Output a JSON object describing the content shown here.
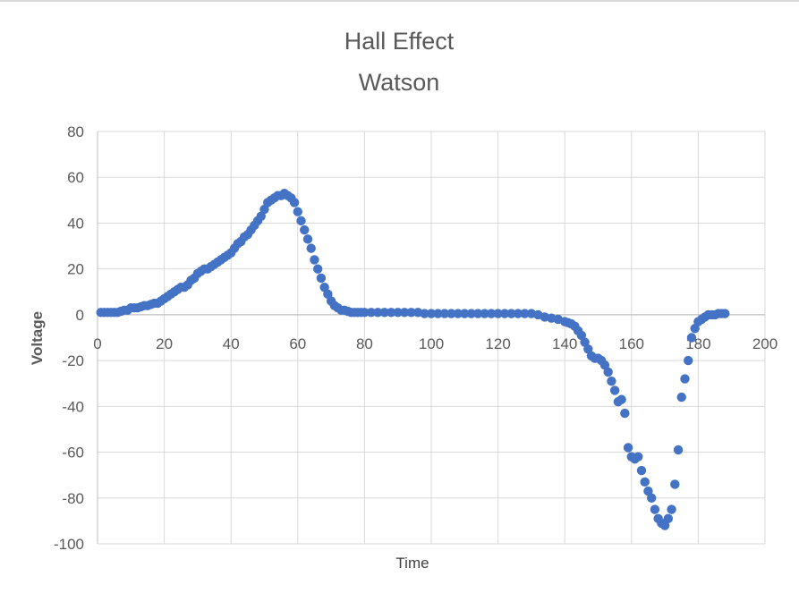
{
  "chart_data": {
    "type": "scatter",
    "title": "Hall Effect",
    "subtitle": "Watson",
    "xlabel": "Time",
    "ylabel": "Voltage",
    "xlim": [
      0,
      200
    ],
    "ylim": [
      -100,
      80
    ],
    "x_ticks": [
      0,
      20,
      40,
      60,
      80,
      100,
      120,
      140,
      160,
      180,
      200
    ],
    "y_ticks": [
      80,
      60,
      40,
      20,
      0,
      -20,
      -40,
      -60,
      -80,
      -100
    ],
    "x_tick_labels": [
      "0",
      "20",
      "40",
      "60",
      "80",
      "100",
      "120",
      "140",
      "160",
      "180",
      "200"
    ],
    "y_tick_labels": [
      "80",
      "60",
      "40",
      "20",
      "0",
      "-20",
      "-40",
      "-60",
      "-80",
      "-100"
    ],
    "grid": true,
    "legend": false,
    "marker_color": "#4472c4",
    "series": [
      {
        "points": [
          [
            1,
            1
          ],
          [
            2,
            1
          ],
          [
            3,
            1
          ],
          [
            4,
            1
          ],
          [
            5,
            1
          ],
          [
            6,
            1
          ],
          [
            7,
            1.5
          ],
          [
            8,
            2
          ],
          [
            9,
            2
          ],
          [
            10,
            3
          ],
          [
            11,
            3
          ],
          [
            12,
            3
          ],
          [
            13,
            3.5
          ],
          [
            14,
            4
          ],
          [
            15,
            4
          ],
          [
            16,
            4.5
          ],
          [
            17,
            5
          ],
          [
            18,
            5
          ],
          [
            19,
            6
          ],
          [
            20,
            7
          ],
          [
            21,
            8
          ],
          [
            22,
            9
          ],
          [
            23,
            10
          ],
          [
            24,
            11
          ],
          [
            25,
            12
          ],
          [
            26,
            12
          ],
          [
            27,
            13
          ],
          [
            28,
            15
          ],
          [
            29,
            16
          ],
          [
            30,
            18
          ],
          [
            31,
            19
          ],
          [
            32,
            20
          ],
          [
            33,
            20
          ],
          [
            34,
            21
          ],
          [
            35,
            22
          ],
          [
            36,
            23
          ],
          [
            37,
            24
          ],
          [
            38,
            25
          ],
          [
            39,
            26
          ],
          [
            40,
            27
          ],
          [
            41,
            29
          ],
          [
            42,
            31
          ],
          [
            43,
            32
          ],
          [
            44,
            34
          ],
          [
            45,
            35
          ],
          [
            46,
            37
          ],
          [
            47,
            39
          ],
          [
            48,
            41
          ],
          [
            49,
            43
          ],
          [
            50,
            46
          ],
          [
            51,
            49
          ],
          [
            52,
            50
          ],
          [
            53,
            51
          ],
          [
            54,
            52
          ],
          [
            55,
            52
          ],
          [
            56,
            53
          ],
          [
            57,
            52
          ],
          [
            58,
            51
          ],
          [
            59,
            49
          ],
          [
            60,
            45
          ],
          [
            61,
            41
          ],
          [
            62,
            37
          ],
          [
            63,
            33
          ],
          [
            64,
            29
          ],
          [
            65,
            24
          ],
          [
            66,
            20
          ],
          [
            67,
            16
          ],
          [
            68,
            12
          ],
          [
            69,
            9
          ],
          [
            70,
            6
          ],
          [
            71,
            4
          ],
          [
            72,
            3
          ],
          [
            73,
            2
          ],
          [
            74,
            2
          ],
          [
            75,
            1.5
          ],
          [
            76,
            1
          ],
          [
            77,
            1
          ],
          [
            78,
            1
          ],
          [
            79,
            1
          ],
          [
            80,
            1
          ],
          [
            82,
            1
          ],
          [
            84,
            1
          ],
          [
            86,
            1
          ],
          [
            88,
            1
          ],
          [
            90,
            1
          ],
          [
            92,
            1
          ],
          [
            94,
            1
          ],
          [
            96,
            1
          ],
          [
            98,
            0.5
          ],
          [
            100,
            0.5
          ],
          [
            102,
            0.5
          ],
          [
            104,
            0.5
          ],
          [
            106,
            0.5
          ],
          [
            108,
            0.5
          ],
          [
            110,
            0.5
          ],
          [
            112,
            0.5
          ],
          [
            114,
            0.5
          ],
          [
            116,
            0.5
          ],
          [
            118,
            0.5
          ],
          [
            120,
            0.5
          ],
          [
            122,
            0.5
          ],
          [
            124,
            0.5
          ],
          [
            126,
            0.5
          ],
          [
            128,
            0.5
          ],
          [
            130,
            0.5
          ],
          [
            132,
            0
          ],
          [
            134,
            -1
          ],
          [
            136,
            -1.5
          ],
          [
            138,
            -2
          ],
          [
            140,
            -3
          ],
          [
            141,
            -3.5
          ],
          [
            142,
            -4
          ],
          [
            143,
            -5
          ],
          [
            144,
            -7
          ],
          [
            145,
            -9
          ],
          [
            146,
            -12
          ],
          [
            147,
            -15
          ],
          [
            148,
            -18
          ],
          [
            149,
            -19
          ],
          [
            150,
            -19
          ],
          [
            151,
            -20
          ],
          [
            152,
            -22
          ],
          [
            153,
            -25
          ],
          [
            154,
            -29
          ],
          [
            155,
            -33
          ],
          [
            156,
            -38
          ],
          [
            157,
            -37
          ],
          [
            158,
            -43
          ],
          [
            159,
            -58
          ],
          [
            160,
            -62
          ],
          [
            161,
            -63
          ],
          [
            162,
            -62
          ],
          [
            163,
            -68
          ],
          [
            164,
            -73
          ],
          [
            165,
            -77
          ],
          [
            166,
            -80
          ],
          [
            167,
            -85
          ],
          [
            168,
            -89
          ],
          [
            169,
            -91
          ],
          [
            170,
            -92
          ],
          [
            171,
            -89
          ],
          [
            172,
            -85
          ],
          [
            173,
            -74
          ],
          [
            174,
            -59
          ],
          [
            175,
            -36
          ],
          [
            176,
            -28
          ],
          [
            177,
            -20
          ],
          [
            178,
            -10
          ],
          [
            179,
            -6
          ],
          [
            180,
            -3
          ],
          [
            181,
            -2
          ],
          [
            182,
            -1
          ],
          [
            183,
            0
          ],
          [
            184,
            0
          ],
          [
            185,
            0
          ],
          [
            186,
            0.5
          ],
          [
            187,
            0.5
          ],
          [
            188,
            0.5
          ]
        ]
      }
    ]
  }
}
